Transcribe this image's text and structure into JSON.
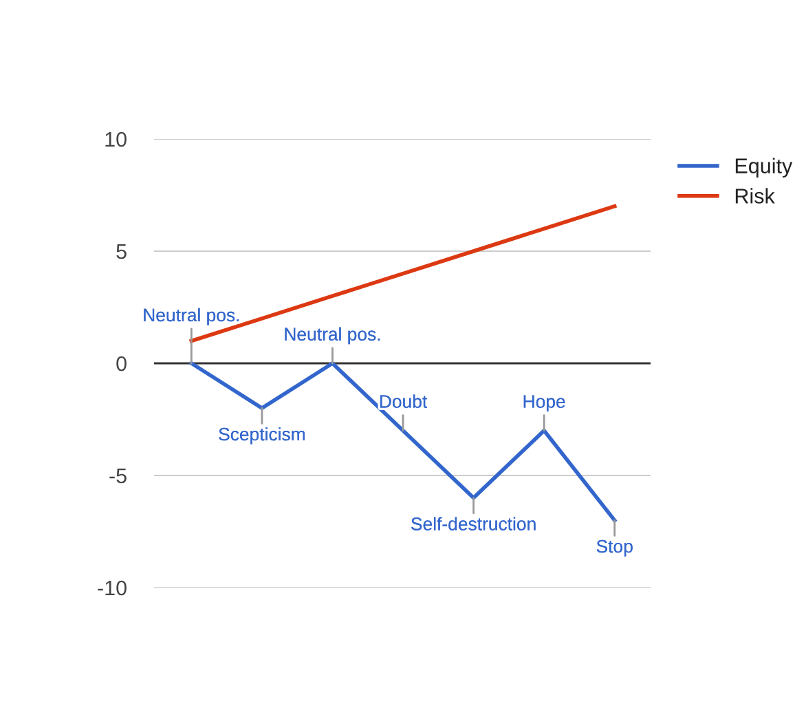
{
  "chart_data": {
    "type": "line",
    "categories": [
      null,
      null,
      null,
      null,
      null,
      null,
      null
    ],
    "series": [
      {
        "name": "Equity",
        "color": "#3366cc",
        "values": [
          0,
          -2,
          0,
          -3,
          -6,
          -3,
          -7
        ]
      },
      {
        "name": "Risk",
        "color": "#dc3912",
        "values": [
          1,
          2,
          3,
          4,
          5,
          6,
          7
        ]
      }
    ],
    "ylim": [
      -10,
      10
    ],
    "yticks": [
      -10,
      -5,
      0,
      5,
      10
    ],
    "tick_labels": "y",
    "grid": "y",
    "legend": "right",
    "ref_lines": [
      {
        "axis": "y",
        "value": 0,
        "color": "#333333"
      }
    ],
    "annotations": [
      {
        "text": "Neutral pos.",
        "y": 0
      },
      {
        "text": "Scepticism",
        "y": -2
      },
      {
        "text": "Neutral pos.",
        "y": 0
      },
      {
        "text": "Doubt",
        "y": -3
      },
      {
        "text": "Self-destruction",
        "y": -6
      },
      {
        "text": "Hope",
        "y": -3
      },
      {
        "text": "Stop",
        "y": -7
      }
    ]
  }
}
